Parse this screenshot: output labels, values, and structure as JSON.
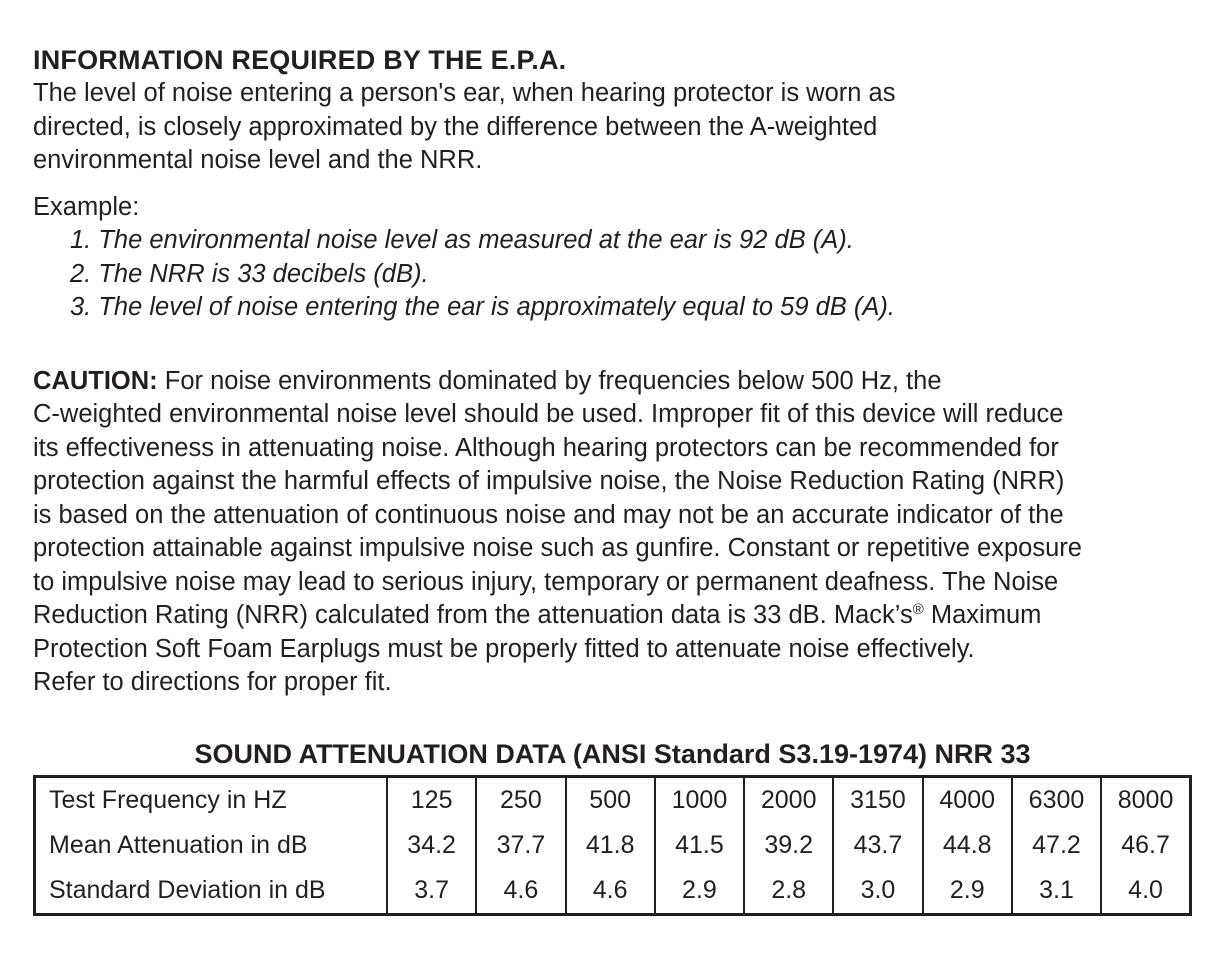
{
  "colors": {
    "ink": "#231f20",
    "background": "#ffffff"
  },
  "document": {
    "heading": "INFORMATION REQUIRED BY THE E.P.A.",
    "intro": {
      "line1": "The level of noise entering a person's ear, when hearing protector is worn as",
      "line2": "directed, is closely approximated by the difference between the A-weighted",
      "line3": "environmental noise level and the NRR."
    },
    "example": {
      "label": "Example:",
      "items": [
        "1. The environmental noise level as measured at the ear is 92 dB (A).",
        "2. The NRR is 33 decibels (dB).",
        "3. The level of noise entering the ear is approximately equal to 59 dB (A)."
      ]
    },
    "caution": {
      "bold_label": "CAUTION:",
      "line1_rest": " For noise environments dominated by frequencies below 500 Hz, the",
      "line2": "C-weighted environmental noise level should be used. Improper fit of this device will reduce",
      "line3": "its effectiveness in attenuating noise. Although hearing protectors can be recommended for",
      "line4": "protection against the harmful effects of impulsive noise, the Noise Reduction Rating (NRR)",
      "line5": "is based on the attenuation of continuous noise and may not be an accurate indicator of the",
      "line6": "protection attainable against impulsive noise such as gunfire. Constant or repetitive exposure",
      "line7": "to impulsive noise may lead to serious injury, temporary or permanent deafness. The Noise",
      "line8_part1": "Reduction Rating (NRR) calculated from the attenuation data is 33 dB. Mack’s",
      "line8_reg": "®",
      "line8_part2": " Maximum",
      "line9": "Protection Soft Foam Earplugs must be properly fitted to attenuate noise effectively.",
      "line10": "Refer to directions for proper fit."
    },
    "table": {
      "title": "SOUND ATTENUATION DATA (ANSI Standard S3.19-1974) NRR 33",
      "rows": [
        {
          "label": "Test Frequency in HZ",
          "values": [
            "125",
            "250",
            "500",
            "1000",
            "2000",
            "3150",
            "4000",
            "6300",
            "8000"
          ]
        },
        {
          "label": "Mean Attenuation in dB",
          "values": [
            "34.2",
            "37.7",
            "41.8",
            "41.5",
            "39.2",
            "43.7",
            "44.8",
            "47.2",
            "46.7"
          ]
        },
        {
          "label": "Standard Deviation in dB",
          "values": [
            "3.7",
            "4.6",
            "4.6",
            "2.9",
            "2.8",
            "3.0",
            "2.9",
            "3.1",
            "4.0"
          ]
        }
      ]
    }
  }
}
